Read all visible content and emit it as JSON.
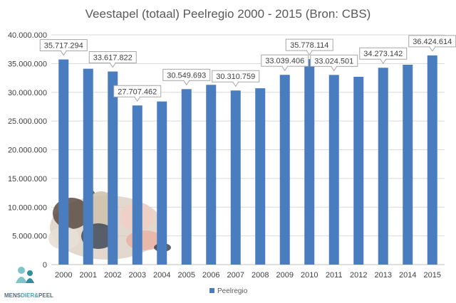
{
  "chart_data": {
    "type": "bar",
    "title": "Veestapel (totaal) Peelregio  2000 - 2015 (Bron: CBS)",
    "categories": [
      "2000",
      "2001",
      "2002",
      "2003",
      "2004",
      "2005",
      "2006",
      "2007",
      "2008",
      "2009",
      "2010",
      "2011",
      "2012",
      "2013",
      "2014",
      "2015"
    ],
    "series": [
      {
        "name": "Peelregio",
        "color": "#4a7cc0",
        "values": [
          35717294,
          34100000,
          33617822,
          27707462,
          28400000,
          30549693,
          31300000,
          30310759,
          30700000,
          33039406,
          35778114,
          33024501,
          32700000,
          34273142,
          34800000,
          36424614
        ]
      }
    ],
    "data_labels": [
      {
        "category": "2000",
        "text": "35.717.294"
      },
      {
        "category": "2002",
        "text": "33.617.822"
      },
      {
        "category": "2003",
        "text": "27.707.462"
      },
      {
        "category": "2005",
        "text": "30.549.693"
      },
      {
        "category": "2007",
        "text": "30.310.759"
      },
      {
        "category": "2009",
        "text": "33.039.406"
      },
      {
        "category": "2010",
        "text": "35.778.114"
      },
      {
        "category": "2011",
        "text": "33.024.501"
      },
      {
        "category": "2013",
        "text": "34.273.142"
      },
      {
        "category": "2015",
        "text": "36.424.614"
      }
    ],
    "y_ticks": [
      "0",
      "5.000.000",
      "10.000.000",
      "15.000.000",
      "20.000.000",
      "25.000.000",
      "30.000.000",
      "35.000.000",
      "40.000.000"
    ],
    "ylim": [
      0,
      40000000
    ],
    "grid": true,
    "legend_position": "bottom",
    "xlabel": "",
    "ylabel": ""
  },
  "logo": {
    "text_part1": "MENS",
    "text_part2": "DIER",
    "text_part3": "&",
    "text_part4": "PEEL",
    "icon": "people-icon"
  },
  "photo": {
    "icon": "livestock-photo-icon"
  }
}
